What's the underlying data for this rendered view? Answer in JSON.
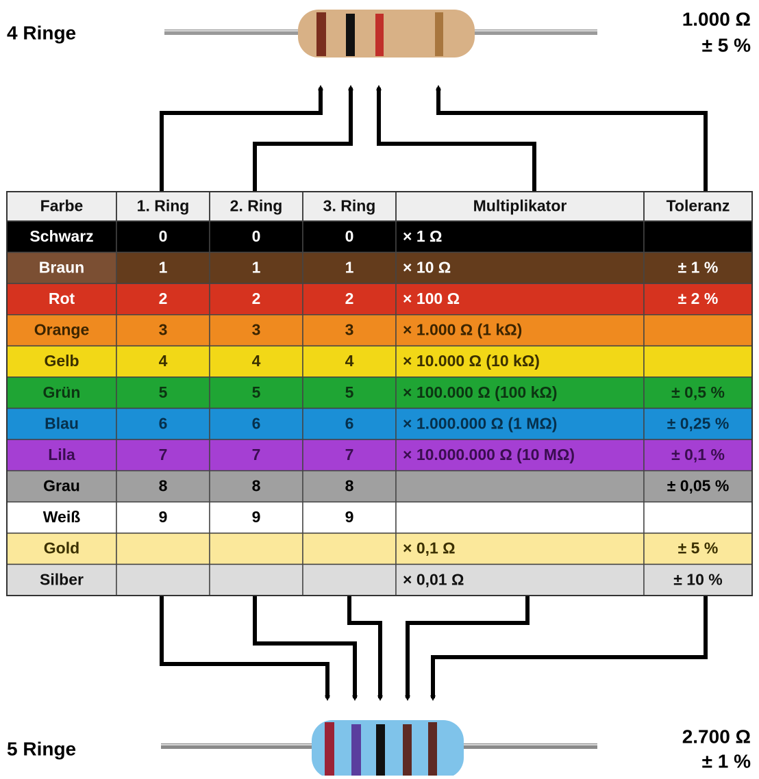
{
  "labels": {
    "top_title": "4 Ringe",
    "top_value": "1.000 Ω",
    "top_tolerance": "± 5 %",
    "bottom_title": "5 Ringe",
    "bottom_value": "2.700 Ω",
    "bottom_tolerance": "± 1 %"
  },
  "table": {
    "header": [
      "Farbe",
      "1. Ring",
      "2. Ring",
      "3. Ring",
      "Multiplikator",
      "Toleranz"
    ],
    "rows": [
      [
        "Schwarz",
        "0",
        "0",
        "0",
        "× 1 Ω",
        null
      ],
      [
        "Braun",
        "1",
        "1",
        "1",
        "× 10 Ω",
        "± 1 %"
      ],
      [
        "Rot",
        "2",
        "2",
        "2",
        "× 100 Ω",
        "± 2 %"
      ],
      [
        "Orange",
        "3",
        "3",
        "3",
        "× 1.000 Ω (1 kΩ)",
        null
      ],
      [
        "Gelb",
        "4",
        "4",
        "4",
        "× 10.000 Ω (10 kΩ)",
        null
      ],
      [
        "Grün",
        "5",
        "5",
        "5",
        "× 100.000 Ω (100 kΩ)",
        "± 0,5 %"
      ],
      [
        "Blau",
        "6",
        "6",
        "6",
        "× 1.000.000 Ω (1 MΩ)",
        "± 0,25 %"
      ],
      [
        "Lila",
        "7",
        "7",
        "7",
        "× 10.000.000 Ω (10 MΩ)",
        "± 0,1 %"
      ],
      [
        "Grau",
        "8",
        "8",
        "8",
        null,
        "± 0,05 %"
      ],
      [
        "Weiß",
        "9",
        "9",
        "9",
        null,
        null
      ],
      [
        "Gold",
        null,
        null,
        null,
        "× 0,1 Ω",
        "± 5 %"
      ],
      [
        "Silber",
        null,
        null,
        null,
        "× 0,01 Ω",
        "± 10 %"
      ]
    ],
    "row_colors": [
      {
        "fill": "#000000",
        "text": "#ffffff"
      },
      {
        "fill": "#643c1c",
        "text": "#ffffff"
      },
      {
        "fill": "#d6331f",
        "text": "#ffffff"
      },
      {
        "fill": "#ef8a1f",
        "text": "#3b2400"
      },
      {
        "fill": "#f2d817",
        "text": "#3b3000"
      },
      {
        "fill": "#1fa534",
        "text": "#0c3512"
      },
      {
        "fill": "#1b8fd6",
        "text": "#06304c"
      },
      {
        "fill": "#a53fd3",
        "text": "#3a0d50"
      },
      {
        "fill": "#a0a0a0",
        "text": "#000000"
      },
      {
        "fill": "#ffffff",
        "text": "#000000"
      },
      {
        "fill": "#fbe89b",
        "text": "#3b3000"
      },
      {
        "fill": "#dcdcdc",
        "text": "#111111"
      }
    ]
  }
}
